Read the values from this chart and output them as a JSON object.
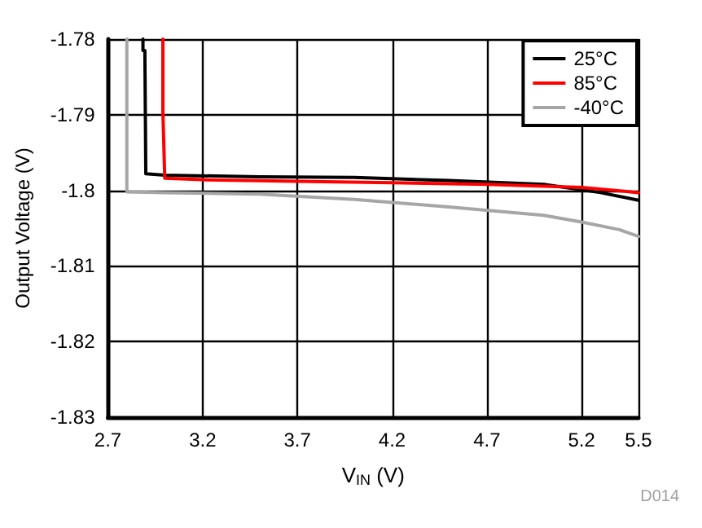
{
  "chart_data": {
    "type": "line",
    "xlabel": "V$_{IN}$ (V)",
    "ylabel": "Output Voltage (V)",
    "xlim": [
      2.7,
      5.5
    ],
    "xticks": [
      2.7,
      3.2,
      3.7,
      4.2,
      4.7,
      5.2,
      5.5
    ],
    "ylim": [
      -1.83,
      -1.78
    ],
    "yticks": [
      -1.83,
      -1.82,
      -1.81,
      -1.8,
      -1.79,
      -1.78
    ],
    "grid": true,
    "legend": "top right",
    "marker": "none",
    "line_style": "solid",
    "annotations": [
      "D014"
    ],
    "series": [
      {
        "name": "25°C",
        "color": "#000000",
        "x": [
          2.885,
          2.885,
          2.895,
          2.9,
          3.0,
          3.5,
          4.0,
          4.5,
          5.0,
          5.3,
          5.5
        ],
        "values": [
          -1.78,
          -1.7815,
          -1.7815,
          -1.7978,
          -1.798,
          -1.7982,
          -1.7983,
          -1.7987,
          -1.7992,
          -1.8003,
          -1.8013
        ]
      },
      {
        "name": "85°C",
        "color": "#ff0000",
        "x": [
          2.99,
          2.99,
          2.995,
          3.0,
          3.2,
          3.7,
          4.2,
          4.7,
          5.2,
          5.5
        ],
        "values": [
          -1.78,
          -1.7895,
          -1.7895,
          -1.7984,
          -1.7986,
          -1.7988,
          -1.799,
          -1.7992,
          -1.7996,
          -1.8003
        ]
      },
      {
        "name": "-40°C",
        "color": "#a6a6a6",
        "x": [
          2.8,
          2.8,
          3.0,
          3.5,
          4.0,
          4.5,
          5.0,
          5.2,
          5.4,
          5.5
        ],
        "values": [
          -1.78,
          -1.8002,
          -1.8003,
          -1.8005,
          -1.8012,
          -1.8022,
          -1.8033,
          -1.8042,
          -1.8052,
          -1.8061
        ]
      }
    ]
  }
}
